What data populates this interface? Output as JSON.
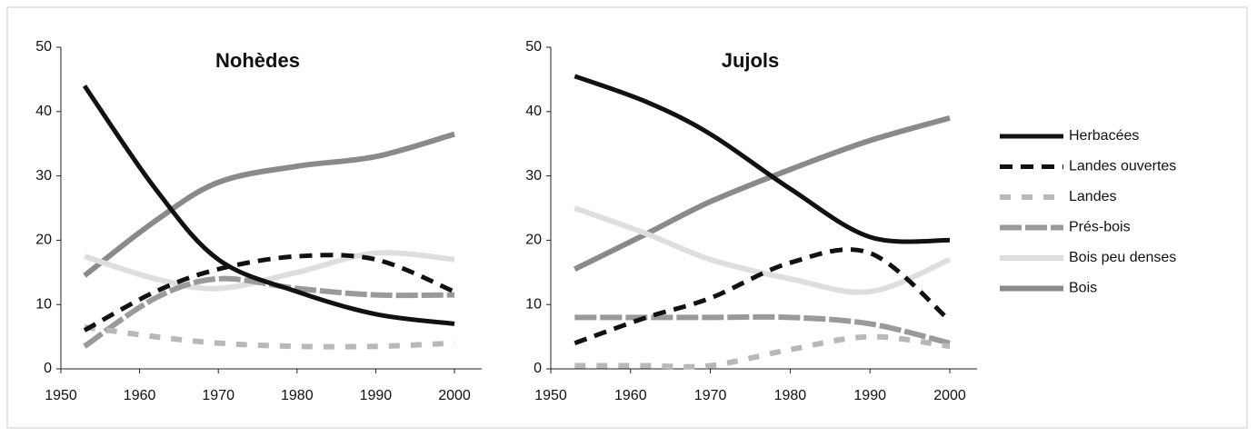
{
  "chart_data": [
    {
      "type": "line",
      "title": "Nohèdes",
      "x": [
        1953,
        1962,
        1970,
        1980,
        1990,
        2000
      ],
      "xlim": [
        1950,
        2000
      ],
      "xticks": [
        1950,
        1960,
        1970,
        1980,
        1990,
        2000
      ],
      "ylim": [
        0,
        50
      ],
      "yticks": [
        0,
        10,
        20,
        30,
        40,
        50
      ],
      "series": [
        {
          "name": "Herbacées",
          "color": "#111111",
          "style": "solid",
          "values": [
            44,
            28,
            17,
            12,
            8.5,
            7
          ]
        },
        {
          "name": "Landes ouvertes",
          "color": "#111111",
          "style": "dashed",
          "values": [
            6,
            12,
            15.5,
            17.5,
            17,
            12
          ]
        },
        {
          "name": "Landes",
          "color": "#b8b8b8",
          "style": "dashed",
          "values": [
            6.5,
            5,
            4,
            3.5,
            3.5,
            4
          ]
        },
        {
          "name": "Prés-bois",
          "color": "#9a9a9a",
          "style": "dashed",
          "values": [
            3.5,
            11,
            14,
            12.5,
            11.5,
            11.5
          ]
        },
        {
          "name": "Bois peu denses",
          "color": "#dedede",
          "style": "solid",
          "values": [
            17.5,
            14,
            12.5,
            15,
            18,
            17
          ]
        },
        {
          "name": "Bois",
          "color": "#8a8a8a",
          "style": "solid",
          "values": [
            14.5,
            23,
            29,
            31.5,
            33,
            36.5
          ]
        }
      ]
    },
    {
      "type": "line",
      "title": "Jujols",
      "x": [
        1953,
        1962,
        1970,
        1980,
        1990,
        2000
      ],
      "xlim": [
        1950,
        2000
      ],
      "xticks": [
        1950,
        1960,
        1970,
        1980,
        1990,
        2000
      ],
      "ylim": [
        0,
        50
      ],
      "yticks": [
        0,
        10,
        20,
        30,
        40,
        50
      ],
      "series": [
        {
          "name": "Herbacées",
          "color": "#111111",
          "style": "solid",
          "values": [
            45.5,
            41.5,
            36.5,
            28,
            20.5,
            20
          ]
        },
        {
          "name": "Landes ouvertes",
          "color": "#111111",
          "style": "dashed",
          "values": [
            4,
            8,
            11,
            16.5,
            18,
            7.5
          ]
        },
        {
          "name": "Landes",
          "color": "#b8b8b8",
          "style": "dashed",
          "values": [
            0.5,
            0.5,
            0.5,
            3,
            5,
            3.5
          ]
        },
        {
          "name": "Prés-bois",
          "color": "#9a9a9a",
          "style": "dashed",
          "values": [
            8,
            8,
            8,
            8,
            7,
            4
          ]
        },
        {
          "name": "Bois peu denses",
          "color": "#dedede",
          "style": "solid",
          "values": [
            25,
            21,
            17,
            14,
            12,
            17
          ]
        },
        {
          "name": "Bois",
          "color": "#8a8a8a",
          "style": "solid",
          "values": [
            15.5,
            21,
            26,
            31,
            35.5,
            39
          ]
        }
      ]
    }
  ]
}
